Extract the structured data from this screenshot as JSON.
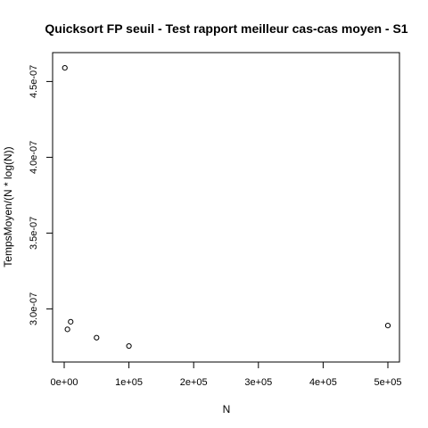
{
  "chart_data": {
    "type": "scatter",
    "title": "Quicksort FP seuil - Test rapport meilleur cas-cas moyen - S1",
    "xlabel": "N",
    "ylabel": "TempsMoyen/(N * log(N))",
    "xlim": [
      0,
      500000
    ],
    "ylim": [
      2.72e-07,
      4.62e-07
    ],
    "grid": false,
    "x_ticks": [
      {
        "value": 0,
        "label": "0e+00"
      },
      {
        "value": 100000,
        "label": "1e+05"
      },
      {
        "value": 200000,
        "label": "2e+05"
      },
      {
        "value": 300000,
        "label": "3e+05"
      },
      {
        "value": 400000,
        "label": "4e+05"
      },
      {
        "value": 500000,
        "label": "5e+05"
      }
    ],
    "y_ticks": [
      {
        "value": 3e-07,
        "label": "3.0e-07"
      },
      {
        "value": 3.5e-07,
        "label": "3.5e-07"
      },
      {
        "value": 4e-07,
        "label": "4.0e-07"
      },
      {
        "value": 4.5e-07,
        "label": "4.5e-07"
      }
    ],
    "points": [
      {
        "x": 1000,
        "y": 4.59e-07
      },
      {
        "x": 5000,
        "y": 2.865e-07
      },
      {
        "x": 10000,
        "y": 2.915e-07
      },
      {
        "x": 50000,
        "y": 2.81e-07
      },
      {
        "x": 100000,
        "y": 2.755e-07
      },
      {
        "x": 500000,
        "y": 2.89e-07
      }
    ]
  }
}
